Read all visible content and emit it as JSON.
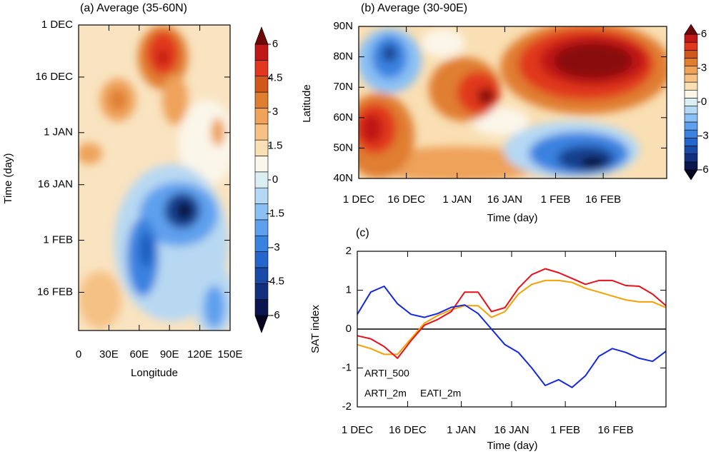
{
  "chart_data": [
    {
      "type": "contour",
      "title": "(a) Average (35-60N)",
      "x_label": "Longitude",
      "y_label": "Time (day)",
      "xlim": [
        0,
        150
      ],
      "xticks": [
        0,
        {
          "value": 30,
          "label": "30E"
        },
        {
          "value": 60,
          "label": "60E"
        },
        {
          "value": 90,
          "label": "90E"
        },
        {
          "value": 120,
          "label": "120E"
        },
        {
          "value": 150,
          "label": "150E"
        }
      ],
      "ylim": [
        88,
        0
      ],
      "yticks": [
        {
          "value": 0,
          "label": "1 DEC"
        },
        {
          "value": 15,
          "label": "16 DEC"
        },
        {
          "value": 31,
          "label": "1 JAN"
        },
        {
          "value": 46,
          "label": "16 JAN"
        },
        {
          "value": 62,
          "label": "1 FEB"
        },
        {
          "value": 77,
          "label": "16 FEB"
        }
      ],
      "clim": [
        -6,
        6
      ],
      "cbticks": [
        -6,
        -4.5,
        -3,
        -1.5,
        0,
        1.5,
        3,
        4.5,
        6
      ],
      "colors": [
        "#05051f",
        "#0b1650",
        "#12307e",
        "#1a4aa8",
        "#2566cc",
        "#3a82e0",
        "#5fa0ee",
        "#8ac0f4",
        "#b5d8f4",
        "#daeef4",
        "#fbf6ea",
        "#f9dfb3",
        "#f5c184",
        "#eea25a",
        "#e07e30",
        "#d1571a",
        "#e0371e",
        "#c01818",
        "#6e0808"
      ]
    },
    {
      "type": "contour",
      "title": "(b) Average (30-90E)",
      "x_label": "Time (day)",
      "y_label": "Latitude",
      "xlim": [
        0,
        97
      ],
      "xticks": [
        {
          "value": 0,
          "label": "1 DEC"
        },
        {
          "value": 15,
          "label": "16 DEC"
        },
        {
          "value": 31,
          "label": "1 JAN"
        },
        {
          "value": 46,
          "label": "16 JAN"
        },
        {
          "value": 62,
          "label": "1 FEB"
        },
        {
          "value": 77,
          "label": "16 FEB"
        }
      ],
      "ylim": [
        40,
        90
      ],
      "yticks": [
        {
          "value": 40,
          "label": "40N"
        },
        {
          "value": 50,
          "label": "50N"
        },
        {
          "value": 60,
          "label": "60N"
        },
        {
          "value": 70,
          "label": "70N"
        },
        {
          "value": 80,
          "label": "80N"
        },
        {
          "value": 90,
          "label": "90N"
        }
      ],
      "clim": [
        -6,
        6
      ],
      "cbticks": [
        -6,
        -3,
        0,
        3,
        6
      ],
      "colors": [
        "#05051f",
        "#0b1650",
        "#12307e",
        "#1a4aa8",
        "#2566cc",
        "#3a82e0",
        "#5fa0ee",
        "#8ac0f4",
        "#b5d8f4",
        "#daeef4",
        "#fbf6ea",
        "#f9dfb3",
        "#f5c184",
        "#eea25a",
        "#e07e30",
        "#d1571a",
        "#e0371e",
        "#c01818",
        "#6e0808"
      ]
    },
    {
      "type": "line",
      "title": "(c)",
      "x_label": "Time (day)",
      "y_label": "SAT index",
      "x": [
        0,
        4,
        8,
        12,
        16,
        20,
        24,
        28,
        32,
        36,
        40,
        44,
        48,
        52,
        56,
        60,
        64,
        68,
        72,
        76,
        80,
        84,
        88,
        92
      ],
      "xlim": [
        0,
        92
      ],
      "xticks": [
        {
          "value": 0,
          "label": "1 DEC"
        },
        {
          "value": 15,
          "label": "16 DEC"
        },
        {
          "value": 31,
          "label": "1 JAN"
        },
        {
          "value": 46,
          "label": "16 JAN"
        },
        {
          "value": 62,
          "label": "1 FEB"
        },
        {
          "value": 77,
          "label": "16 FEB"
        }
      ],
      "ylim": [
        -2,
        2
      ],
      "yticks": [
        -2,
        -1,
        0,
        1,
        2
      ],
      "series": [
        {
          "name": "ARTI_500",
          "color": "#f5a000",
          "values": [
            -0.4,
            -0.5,
            -0.65,
            -0.65,
            -0.25,
            0.15,
            0.35,
            0.5,
            0.6,
            0.6,
            0.3,
            0.45,
            0.9,
            1.15,
            1.25,
            1.25,
            1.2,
            1.05,
            0.95,
            0.85,
            0.75,
            0.7,
            0.7,
            0.55
          ]
        },
        {
          "name": "ARTI_2m",
          "color": "#e8101a",
          "values": [
            -0.17,
            -0.25,
            -0.45,
            -0.75,
            -0.3,
            0.1,
            0.25,
            0.45,
            0.95,
            0.95,
            0.45,
            0.55,
            1.05,
            1.4,
            1.55,
            1.45,
            1.3,
            1.15,
            1.25,
            1.25,
            1.12,
            1.1,
            0.9,
            0.6
          ]
        },
        {
          "name": "EATI_2m",
          "color": "#1428e0",
          "values": [
            0.38,
            0.95,
            1.1,
            0.65,
            0.38,
            0.3,
            0.4,
            0.56,
            0.62,
            0.4,
            0.0,
            -0.4,
            -0.6,
            -1.0,
            -1.45,
            -1.3,
            -1.5,
            -1.2,
            -0.7,
            -0.5,
            -0.6,
            -0.75,
            -0.83,
            -0.57
          ]
        }
      ]
    }
  ]
}
